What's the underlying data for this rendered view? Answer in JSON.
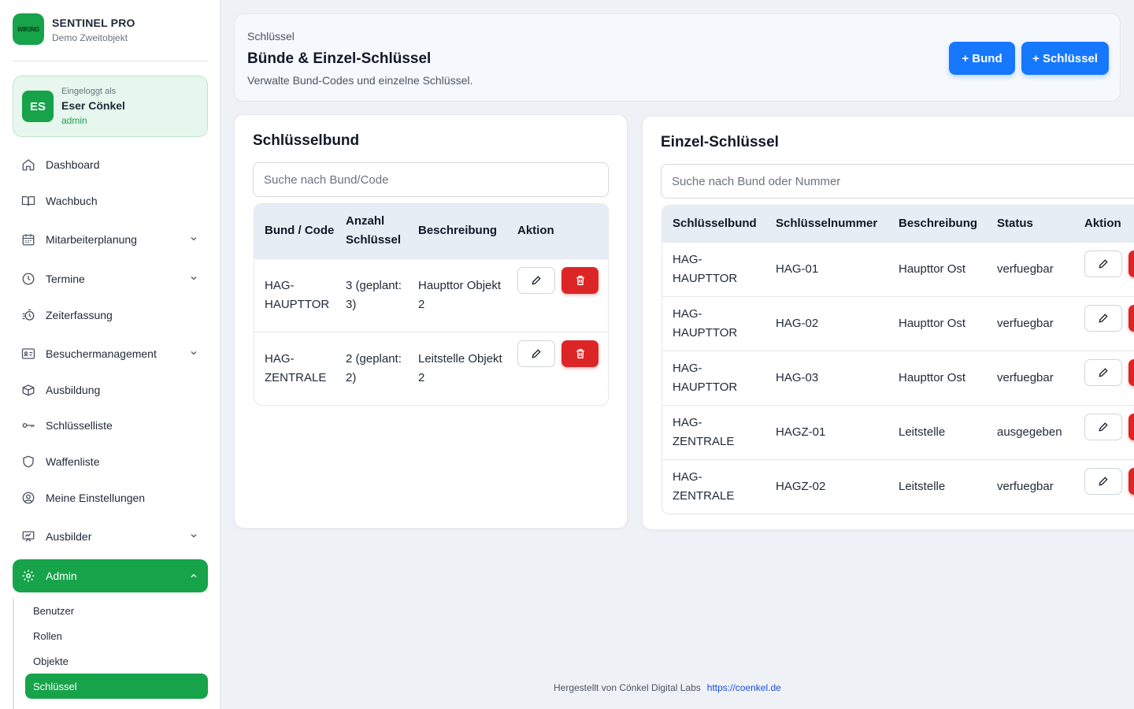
{
  "brand": {
    "name": "SENTINEL PRO",
    "subtitle": "Demo Zweitobjekt",
    "logo_text": "WIKING"
  },
  "user": {
    "initials": "ES",
    "caption": "Eingeloggt als",
    "name": "Eser Cönkel",
    "role": "admin"
  },
  "nav": {
    "dashboard": "Dashboard",
    "wachbuch": "Wachbuch",
    "mitarbeiterplanung": "Mitarbeiterplanung",
    "termine": "Termine",
    "zeiterfassung": "Zeiterfassung",
    "besuchermanagement": "Besuchermanagement",
    "ausbildung": "Ausbildung",
    "schluesselliste": "Schlüsselliste",
    "waffenliste": "Waffenliste",
    "einstellungen": "Meine Einstellungen",
    "ausbilder": "Ausbilder",
    "admin": "Admin"
  },
  "subnav": {
    "benutzer": "Benutzer",
    "rollen": "Rollen",
    "objekte": "Objekte",
    "schluessel": "Schlüssel"
  },
  "header": {
    "breadcrumb": "Schlüssel",
    "title": "Bünde & Einzel-Schlüssel",
    "subtitle": "Verwalte Bund-Codes und einzelne Schlüssel.",
    "add_bund": "+ Bund",
    "add_schluessel": "+ Schlüssel"
  },
  "bund_panel": {
    "title": "Schlüsselbund",
    "search_placeholder": "Suche nach Bund/Code",
    "columns": [
      "Bund / Code",
      "Anzahl Schlüssel",
      "Beschreibung",
      "Aktion"
    ],
    "rows": [
      {
        "code": "HAG-HAUPTTOR",
        "anzahl": "3 (geplant: 3)",
        "beschreibung": "Haupttor Objekt 2"
      },
      {
        "code": "HAG-ZENTRALE",
        "anzahl": "2 (geplant: 2)",
        "beschreibung": "Leitstelle Objekt 2"
      }
    ]
  },
  "einzel_panel": {
    "title": "Einzel-Schlüssel",
    "search_placeholder": "Suche nach Bund oder Nummer",
    "columns": [
      "Schlüsselbund",
      "Schlüsselnummer",
      "Beschreibung",
      "Status",
      "Aktion"
    ],
    "rows": [
      {
        "bund": "HAG-HAUPTTOR",
        "nummer": "HAG-01",
        "beschreibung": "Haupttor Ost",
        "status": "verfuegbar"
      },
      {
        "bund": "HAG-HAUPTTOR",
        "nummer": "HAG-02",
        "beschreibung": "Haupttor Ost",
        "status": "verfuegbar"
      },
      {
        "bund": "HAG-HAUPTTOR",
        "nummer": "HAG-03",
        "beschreibung": "Haupttor Ost",
        "status": "verfuegbar"
      },
      {
        "bund": "HAG-ZENTRALE",
        "nummer": "HAGZ-01",
        "beschreibung": "Leitstelle",
        "status": "ausgegeben"
      },
      {
        "bund": "HAG-ZENTRALE",
        "nummer": "HAGZ-02",
        "beschreibung": "Leitstelle",
        "status": "verfuegbar"
      }
    ]
  },
  "footer": {
    "text": "Hergestellt von Cönkel Digital Labs",
    "link": "https://coenkel.de"
  },
  "colors": {
    "accent": "#16a34a",
    "primary_button": "#1677ff",
    "danger": "#dc2626"
  }
}
